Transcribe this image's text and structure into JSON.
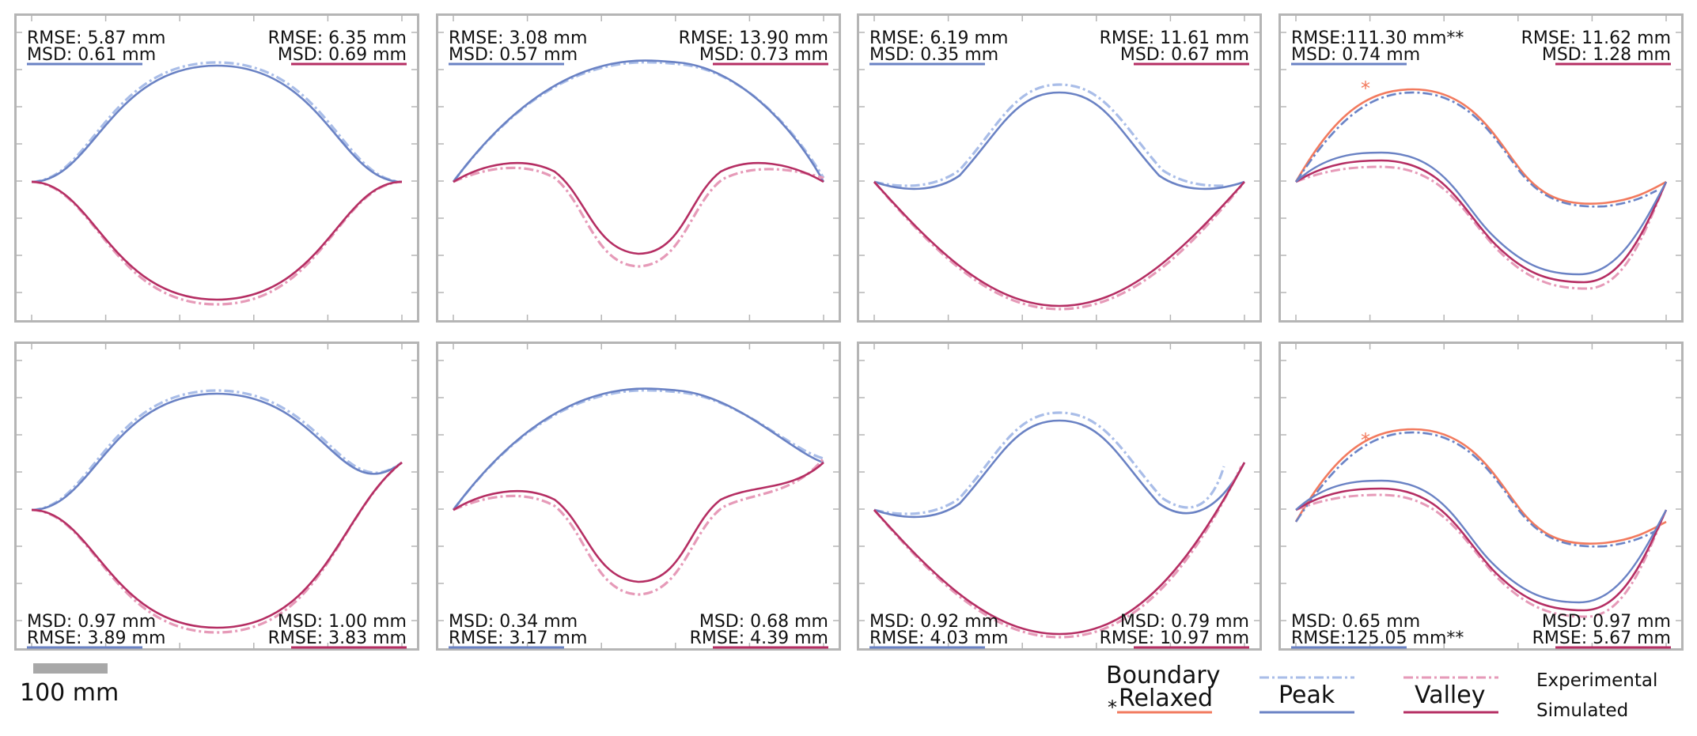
{
  "colors": {
    "peak_sim": "#6a82c4",
    "peak_exp": "#a9bde8",
    "valley_sim": "#b52e63",
    "valley_exp": "#e69ab8",
    "boundary": "#f27a5e",
    "frame": "#b5b5b5",
    "scale_bar": "#a8a8a8"
  },
  "chart_data": [
    {
      "type": "line",
      "row": 1,
      "col": 1,
      "shape": "symmetric",
      "stats_left": {
        "l1": "RMSE: 5.87 mm",
        "l2": "MSD: 0.61 mm"
      },
      "stats_right": {
        "l1": "RMSE: 6.35 mm",
        "l2": "MSD: 0.69 mm"
      }
    },
    {
      "type": "line",
      "row": 1,
      "col": 2,
      "shape": "arch",
      "stats_left": {
        "l1": "RMSE: 3.08 mm",
        "l2": "MSD: 0.57 mm"
      },
      "stats_right": {
        "l1": "RMSE: 13.90 mm",
        "l2": "MSD: 0.73 mm"
      }
    },
    {
      "type": "line",
      "row": 1,
      "col": 3,
      "shape": "bell",
      "stats_left": {
        "l1": "RMSE: 6.19 mm",
        "l2": "MSD: 0.35 mm"
      },
      "stats_right": {
        "l1": "RMSE: 11.61 mm",
        "l2": "MSD: 0.67 mm"
      }
    },
    {
      "type": "line",
      "row": 1,
      "col": 4,
      "shape": "s-wave",
      "boundary_relaxed": true,
      "stats_left": {
        "l1": "RMSE:111.30 mm**",
        "l2": "MSD: 0.74 mm"
      },
      "stats_right": {
        "l1": "RMSE: 11.62 mm",
        "l2": "MSD: 1.28 mm"
      }
    },
    {
      "type": "line",
      "row": 2,
      "col": 1,
      "shape": "symmetric-offset",
      "stats_left": {
        "l1": "MSD: 0.97 mm",
        "l2": "RMSE: 3.89 mm"
      },
      "stats_right": {
        "l1": "MSD: 1.00 mm",
        "l2": "RMSE: 3.83 mm"
      }
    },
    {
      "type": "line",
      "row": 2,
      "col": 2,
      "shape": "arch-offset",
      "stats_left": {
        "l1": "MSD: 0.34 mm",
        "l2": "RMSE: 3.17 mm"
      },
      "stats_right": {
        "l1": "MSD: 0.68 mm",
        "l2": "RMSE: 4.39 mm"
      }
    },
    {
      "type": "line",
      "row": 2,
      "col": 3,
      "shape": "bell-offset",
      "stats_left": {
        "l1": "MSD: 0.92 mm",
        "l2": "RMSE: 4.03 mm"
      },
      "stats_right": {
        "l1": "MSD: 0.79 mm",
        "l2": "RMSE: 10.97 mm"
      }
    },
    {
      "type": "line",
      "row": 2,
      "col": 4,
      "shape": "s-wave-offset",
      "boundary_relaxed": true,
      "stats_left": {
        "l1": "MSD: 0.65 mm",
        "l2": "RMSE:125.05 mm**"
      },
      "stats_right": {
        "l1": "MSD: 0.97 mm",
        "l2": "RMSE: 5.67 mm"
      }
    }
  ],
  "scale_bar": {
    "label": "100 mm",
    "length_mm": 100
  },
  "legend": {
    "boundary_line1": "Boundary",
    "boundary_line2": "Relaxed",
    "peak": "Peak",
    "valley": "Valley",
    "experimental": "Experimental",
    "simulated": "Simulated",
    "star": "*"
  }
}
